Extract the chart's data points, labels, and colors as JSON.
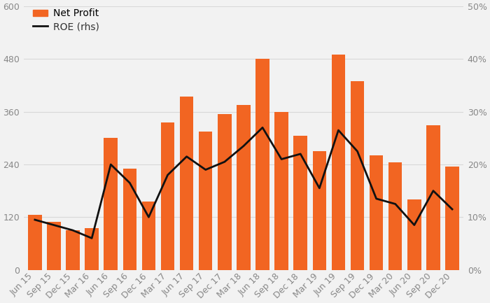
{
  "categories": [
    "Jun 15",
    "Sep 15",
    "Dec 15",
    "Mar 16",
    "Jun 16",
    "Sep 16",
    "Dec 16",
    "Mar 17",
    "Jun 17",
    "Sep 17",
    "Dec 17",
    "Mar 18",
    "Jun 18",
    "Sep 18",
    "Dec 18",
    "Mar 19",
    "Jun 19",
    "Sep 19",
    "Dec 19",
    "Mar 20",
    "Jun 20",
    "Sep 20",
    "Dec 20"
  ],
  "net_profit": [
    125,
    110,
    90,
    95,
    300,
    230,
    155,
    335,
    395,
    315,
    355,
    375,
    480,
    360,
    305,
    270,
    490,
    430,
    260,
    245,
    160,
    330,
    235
  ],
  "roe": [
    9.5,
    8.5,
    7.5,
    6.0,
    20.0,
    16.5,
    10.0,
    18.0,
    21.5,
    19.0,
    20.5,
    23.5,
    27.0,
    21.0,
    22.0,
    15.5,
    26.5,
    22.5,
    13.5,
    12.5,
    8.5,
    15.0,
    11.5
  ],
  "bar_color": "#f26522",
  "line_color": "#111111",
  "background_color": "#f2f2f2",
  "ylim_left": [
    0,
    600
  ],
  "ylim_right": [
    0,
    50
  ],
  "yticks_left": [
    0,
    120,
    240,
    360,
    480,
    600
  ],
  "yticks_right": [
    0,
    10,
    20,
    30,
    40,
    50
  ],
  "ytick_labels_left": [
    "0",
    "120",
    "240",
    "360",
    "480",
    "600"
  ],
  "ytick_labels_right": [
    "0%",
    "10%",
    "20%",
    "30%",
    "40%",
    "50%"
  ],
  "legend_net_profit": "Net Profit",
  "legend_roe_main": "ROE ",
  "legend_roe_rhs": "(rhs)",
  "grid_color": "#d8d8d8",
  "tick_color": "#888888",
  "label_fontsize": 9,
  "tick_fontsize": 9
}
